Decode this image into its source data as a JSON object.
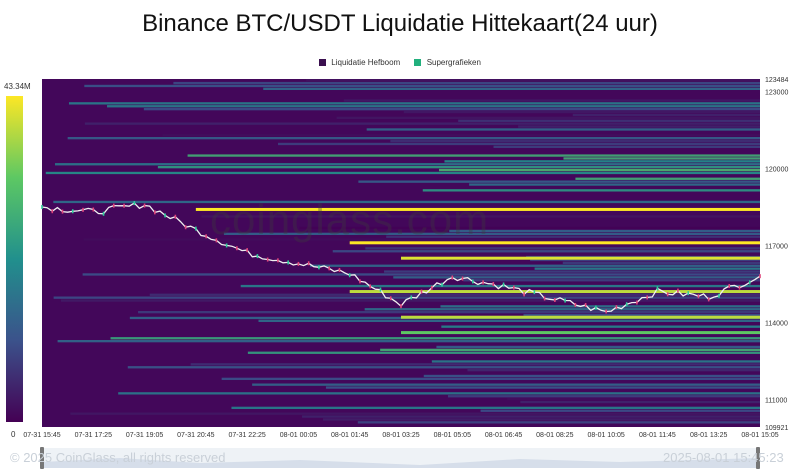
{
  "title": "Binance BTC/USDT Liquidatie Hittekaart(24 uur)",
  "legend": [
    {
      "label": "Liquidatie Hefboom",
      "color": "#3b0f4f"
    },
    {
      "label": "Supergrafieken",
      "color": "#22b07d"
    }
  ],
  "colorbar": {
    "max_label": "43.34M",
    "min_label": "0"
  },
  "watermark": "coinglass.com",
  "footer": {
    "copyright": "© 2025 CoinGlass, all rights reserved",
    "timestamp": "2025-08-01 15:45:23"
  },
  "chart_data": {
    "type": "heatmap",
    "title": "Binance BTC/USDT Liquidatie Hittekaart(24 uur)",
    "x_ticks": [
      "07-31 15:45",
      "07-31 17:25",
      "07-31 19:05",
      "07-31 20:45",
      "07-31 22:25",
      "08-01 00:05",
      "08-01 01:45",
      "08-01 03:25",
      "08-01 05:05",
      "08-01 06:45",
      "08-01 08:25",
      "08-01 10:05",
      "08-01 11:45",
      "08-01 13:25",
      "08-01 15:05"
    ],
    "y_ticks": [
      109921,
      111000,
      114000,
      117000,
      120000,
      123000,
      123484
    ],
    "ylim": [
      109921,
      123484
    ],
    "price_series": {
      "name": "BTC/USDT",
      "x": [
        "07-31 15:45",
        "07-31 17:25",
        "07-31 19:05",
        "07-31 20:45",
        "07-31 22:25",
        "08-01 00:05",
        "08-01 01:45",
        "08-01 03:25",
        "08-01 05:05",
        "08-01 06:45",
        "08-01 08:25",
        "08-01 10:05",
        "08-01 11:45",
        "08-01 13:25",
        "08-01 15:05"
      ],
      "values": [
        118500,
        118300,
        118600,
        117600,
        116700,
        116300,
        115900,
        114700,
        115800,
        115400,
        114900,
        114400,
        115200,
        115000,
        115800
      ]
    },
    "liquidation_levels": [
      {
        "price": 118400,
        "start": "07-31 20:45",
        "intensity": 1.0
      },
      {
        "price": 117100,
        "start": "08-01 01:45",
        "intensity": 1.0
      },
      {
        "price": 116500,
        "start": "08-01 03:25",
        "intensity": 0.95
      },
      {
        "price": 114200,
        "start": "08-01 02:45",
        "intensity": 0.9
      },
      {
        "price": 113600,
        "start": "08-01 03:00",
        "intensity": 0.75
      },
      {
        "price": 115200,
        "start": "08-01 01:45",
        "intensity": 0.9
      }
    ],
    "colorscale": {
      "min": 0,
      "max": "43.34M",
      "colors": [
        "#440154",
        "#3b528b",
        "#21908d",
        "#5dc863",
        "#fde725"
      ]
    },
    "grid": false,
    "legend_position": "top-center"
  }
}
